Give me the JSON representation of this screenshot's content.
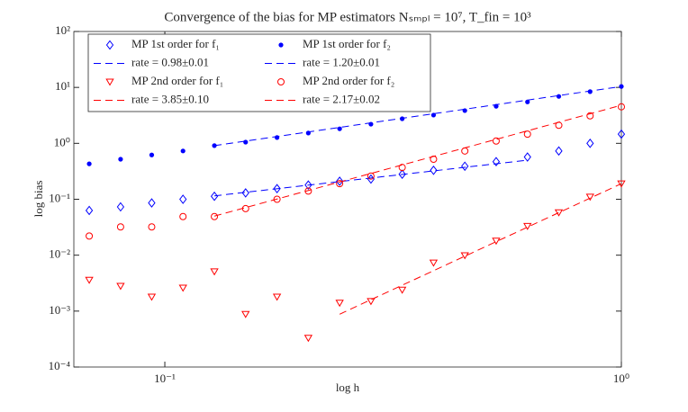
{
  "chart_data": {
    "type": "scatter",
    "title": "Convergence of the bias for MP estimators Nₛₘₚₗ = 10⁷, T_fin = 10³",
    "x_label": "log h",
    "y_label": "log bias",
    "xlog": true,
    "ylog": true,
    "xlim": [
      0.0632,
      1
    ],
    "ylim": [
      0.0001,
      100
    ],
    "xticks": [
      {
        "value": 0.1,
        "label": "10⁻¹"
      },
      {
        "value": 1,
        "label": "10⁰"
      }
    ],
    "yticks": [
      {
        "value": 0.0001,
        "label": "10⁻⁴"
      },
      {
        "value": 0.001,
        "label": "10⁻³"
      },
      {
        "value": 0.01,
        "label": "10⁻²"
      },
      {
        "value": 0.1,
        "label": "10⁻¹"
      },
      {
        "value": 1,
        "label": "10⁰"
      },
      {
        "value": 10,
        "label": "10¹"
      },
      {
        "value": 100,
        "label": "10²"
      }
    ],
    "legend": "top-left",
    "legend_columns": 2,
    "x": [
      0.0683,
      0.08,
      0.0936,
      0.1096,
      0.1284,
      0.1503,
      0.1761,
      0.2062,
      0.2415,
      0.2828,
      0.3311,
      0.3878,
      0.4541,
      0.5318,
      0.6228,
      0.7294,
      0.8541,
      1.0
    ],
    "series": [
      {
        "name": "MP 1st order for f₁",
        "color": "#0000ff",
        "marker": "diamond",
        "values": [
          0.063,
          0.073,
          0.086,
          0.1,
          0.113,
          0.13,
          0.155,
          0.18,
          0.21,
          0.23,
          0.28,
          0.33,
          0.39,
          0.47,
          0.57,
          0.73,
          1.0,
          1.46
        ]
      },
      {
        "name": "MP 1st order for f₂",
        "color": "#0000ff",
        "marker": "dot",
        "values": [
          0.43,
          0.52,
          0.62,
          0.73,
          0.91,
          1.05,
          1.27,
          1.53,
          1.82,
          2.2,
          2.75,
          3.2,
          3.85,
          4.6,
          5.5,
          6.9,
          8.4,
          10.4
        ]
      },
      {
        "name": "rate = 0.98±0.01",
        "color": "#0000ff",
        "marker": "dashed",
        "x": [
          0.1284,
          0.6228
        ],
        "values": [
          0.115,
          0.5
        ]
      },
      {
        "name": "rate = 1.20±0.01",
        "color": "#0000ff",
        "marker": "dashed",
        "x": [
          0.1284,
          1.0
        ],
        "values": [
          0.91,
          10.4
        ]
      },
      {
        "name": "MP 2nd order for f₁",
        "color": "#ff0000",
        "marker": "triangle",
        "values": [
          0.0036,
          0.0028,
          0.0018,
          0.0026,
          0.0051,
          0.00088,
          0.0018,
          0.00033,
          0.0014,
          0.0015,
          0.0024,
          0.0073,
          0.0099,
          0.018,
          0.033,
          0.058,
          0.11,
          0.19
        ]
      },
      {
        "name": "MP 2nd order for f₂",
        "color": "#ff0000",
        "marker": "circle",
        "values": [
          0.022,
          0.032,
          0.032,
          0.049,
          0.049,
          0.068,
          0.1,
          0.14,
          0.19,
          0.26,
          0.37,
          0.52,
          0.73,
          1.1,
          1.46,
          2.1,
          3.1,
          4.5
        ]
      },
      {
        "name": "rate = 3.85±0.10",
        "color": "#ff0000",
        "marker": "dashed",
        "x": [
          0.2415,
          1.0
        ],
        "values": [
          0.00088,
          0.19
        ]
      },
      {
        "name": "rate = 2.17±0.02",
        "color": "#ff0000",
        "marker": "dashed",
        "x": [
          0.1284,
          1.0
        ],
        "values": [
          0.05,
          4.8
        ]
      }
    ]
  }
}
